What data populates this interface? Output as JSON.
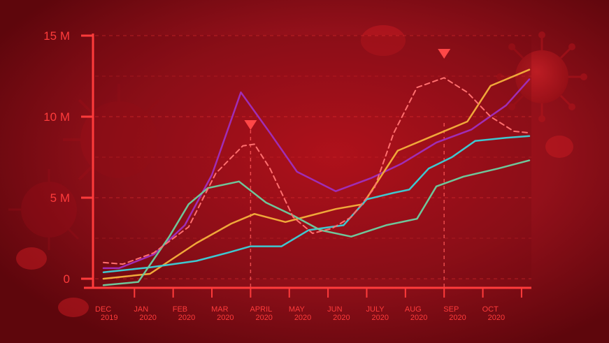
{
  "chart_data": {
    "type": "line",
    "title": "",
    "xlabel": "",
    "ylabel": "",
    "ylim": [
      0,
      15
    ],
    "y_ticks": [
      {
        "value": 0,
        "label": "0"
      },
      {
        "value": 5,
        "label": "5 M"
      },
      {
        "value": 10,
        "label": "10 M"
      },
      {
        "value": 15,
        "label": "15 M"
      }
    ],
    "x_ticks": [
      {
        "month": "DEC",
        "year": "2019"
      },
      {
        "month": "JAN",
        "year": "2020"
      },
      {
        "month": "FEB",
        "year": "2020"
      },
      {
        "month": "MAR",
        "year": "2020"
      },
      {
        "month": "APRIL",
        "year": "2020"
      },
      {
        "month": "MAY",
        "year": "2020"
      },
      {
        "month": "JUN",
        "year": "2020"
      },
      {
        "month": "JULY",
        "year": "2020"
      },
      {
        "month": "AUG",
        "year": "2020"
      },
      {
        "month": "SEP",
        "year": "2020"
      },
      {
        "month": "OCT",
        "year": "2020"
      }
    ],
    "x_range": [
      0,
      11
    ],
    "grid": true,
    "peak_markers": [
      3.8,
      8.8
    ],
    "series": [
      {
        "color": "#a02db5",
        "style": "solid",
        "points": [
          [
            0,
            0.65
          ],
          [
            0.4,
            0.65
          ],
          [
            1.3,
            1.5
          ],
          [
            2.1,
            3.3
          ],
          [
            2.8,
            6.4
          ],
          [
            3.55,
            11.5
          ],
          [
            4.3,
            9.0
          ],
          [
            5.0,
            6.6
          ],
          [
            6.0,
            5.4
          ],
          [
            6.9,
            6.2
          ],
          [
            7.7,
            7.1
          ],
          [
            8.6,
            8.4
          ],
          [
            9.5,
            9.2
          ],
          [
            10.4,
            10.7
          ],
          [
            11,
            12.3
          ]
        ]
      },
      {
        "color": "#f0a83a",
        "style": "solid",
        "points": [
          [
            0,
            0
          ],
          [
            1.2,
            0.3
          ],
          [
            2.4,
            2.2
          ],
          [
            3.3,
            3.4
          ],
          [
            3.9,
            4.0
          ],
          [
            4.7,
            3.5
          ],
          [
            6.0,
            4.3
          ],
          [
            6.7,
            4.6
          ],
          [
            7.6,
            7.9
          ],
          [
            8.5,
            8.8
          ],
          [
            9.4,
            9.7
          ],
          [
            10.0,
            11.9
          ],
          [
            11,
            12.9
          ]
        ]
      },
      {
        "color": "#3fc8d0",
        "style": "solid",
        "points": [
          [
            0,
            0.4
          ],
          [
            1.2,
            0.7
          ],
          [
            2.4,
            1.1
          ],
          [
            3.2,
            1.6
          ],
          [
            3.8,
            2.0
          ],
          [
            4.6,
            2.0
          ],
          [
            5.3,
            3.0
          ],
          [
            6.2,
            3.3
          ],
          [
            6.8,
            4.9
          ],
          [
            7.5,
            5.3
          ],
          [
            7.9,
            5.5
          ],
          [
            8.4,
            6.8
          ],
          [
            9.0,
            7.5
          ],
          [
            9.6,
            8.5
          ],
          [
            10.4,
            8.7
          ],
          [
            11,
            8.8
          ]
        ]
      },
      {
        "color": "#6fc69a",
        "style": "solid",
        "points": [
          [
            0,
            -0.4
          ],
          [
            0.9,
            -0.2
          ],
          [
            1.7,
            2.6
          ],
          [
            2.2,
            4.6
          ],
          [
            2.7,
            5.6
          ],
          [
            3.5,
            6.0
          ],
          [
            4.2,
            4.7
          ],
          [
            4.9,
            3.9
          ],
          [
            5.6,
            3.0
          ],
          [
            6.4,
            2.6
          ],
          [
            7.3,
            3.3
          ],
          [
            8.1,
            3.7
          ],
          [
            8.6,
            5.7
          ],
          [
            9.3,
            6.3
          ],
          [
            10.2,
            6.8
          ],
          [
            11,
            7.3
          ]
        ]
      },
      {
        "color": "#ff6f6f",
        "style": "dashed",
        "points": [
          [
            0,
            1.0
          ],
          [
            0.5,
            0.9
          ],
          [
            1.3,
            1.6
          ],
          [
            2.2,
            3.2
          ],
          [
            2.9,
            6.5
          ],
          [
            3.6,
            8.2
          ],
          [
            3.9,
            8.3
          ],
          [
            4.3,
            6.8
          ],
          [
            4.9,
            3.8
          ],
          [
            5.4,
            2.8
          ],
          [
            5.9,
            3.1
          ],
          [
            6.4,
            3.8
          ],
          [
            7.0,
            5.6
          ],
          [
            7.5,
            9.0
          ],
          [
            8.1,
            11.8
          ],
          [
            8.8,
            12.4
          ],
          [
            9.4,
            11.5
          ],
          [
            10.0,
            10.0
          ],
          [
            10.6,
            9.1
          ],
          [
            11,
            9.0
          ]
        ]
      }
    ]
  }
}
